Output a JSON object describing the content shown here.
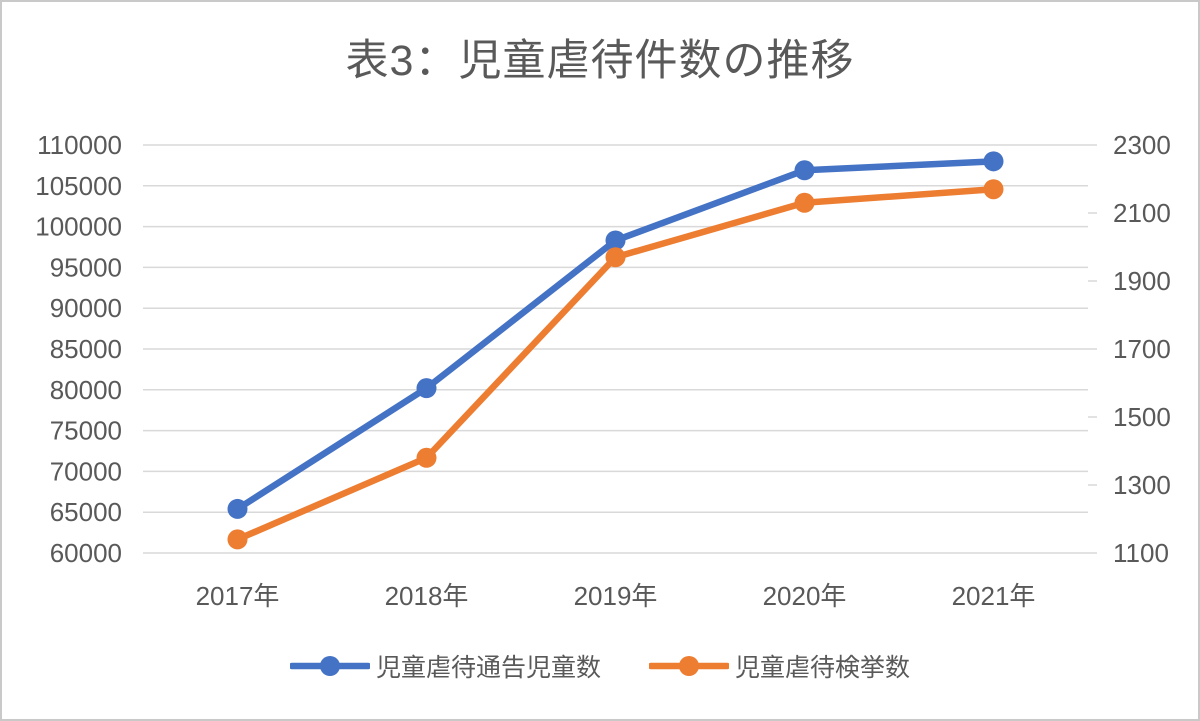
{
  "title": "表3：児童虐待件数の推移",
  "chart_data": {
    "type": "line",
    "title": "表3：児童虐待件数の推移",
    "categories": [
      "2017年",
      "2018年",
      "2019年",
      "2020年",
      "2021年"
    ],
    "series": [
      {
        "name": "児童虐待通告児童数",
        "axis": "left",
        "color": "#4472C4",
        "values": [
          65400,
          80200,
          98300,
          106900,
          108000
        ]
      },
      {
        "name": "児童虐待検挙数",
        "axis": "right",
        "color": "#ED7D31",
        "values": [
          1140,
          1380,
          1970,
          2130,
          2170
        ]
      }
    ],
    "left_axis": {
      "min": 60000,
      "max": 110000,
      "step": 5000,
      "ticks": [
        110000,
        105000,
        100000,
        95000,
        90000,
        85000,
        80000,
        75000,
        70000,
        65000,
        60000
      ],
      "tick_labels": [
        "110000",
        "105000",
        "100000",
        "95000",
        "90000",
        "85000",
        "80000",
        "75000",
        "70000",
        "65000",
        "60000"
      ]
    },
    "right_axis": {
      "min": 1100,
      "max": 2300,
      "step": 200,
      "ticks": [
        2300,
        2100,
        1900,
        1700,
        1500,
        1300,
        1100
      ],
      "tick_labels": [
        "2300",
        "2100",
        "1900",
        "1700",
        "1500",
        "1300",
        "1100"
      ]
    },
    "grid": true,
    "legend_position": "bottom"
  },
  "colors": {
    "text": "#595959",
    "gridline": "#D9D9D9",
    "frame_border": "#C9C9C9",
    "series1": "#4472C4",
    "series2": "#ED7D31"
  }
}
